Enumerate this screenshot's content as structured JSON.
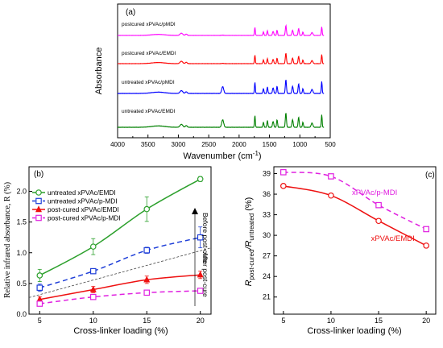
{
  "chart_data": [
    {
      "type": "line",
      "panel_label": "(a)",
      "xlabel": "Wavenumber (cm",
      "xlabel_sup": "-1",
      "xlabel_close": ")",
      "ylabel": "Absorbance",
      "xlim": [
        4000,
        500
      ],
      "xticks": [
        4000,
        3500,
        3000,
        2500,
        2000,
        1500,
        1000,
        500
      ],
      "series": [
        {
          "name": "postcured xPVAc/pMDI",
          "color": "#ff00ff",
          "offset": 3
        },
        {
          "name": "postcured xPVAc/EMDI",
          "color": "#ff0000",
          "offset": 2
        },
        {
          "name": "untreated xPVAc/pMDI",
          "color": "#0000ff",
          "offset": 1
        },
        {
          "name": "untreated xPVAc/EMDI",
          "color": "#008000",
          "offset": 0
        }
      ]
    },
    {
      "type": "line",
      "panel_label": "(b)",
      "xlabel": "Cross-linker loading (%)",
      "ylabel": "Relative infrared absorbance, R (%)",
      "xlim": [
        4,
        21
      ],
      "ylim": [
        0,
        2.4
      ],
      "xticks": [
        5,
        10,
        15,
        20
      ],
      "yticks": [
        0.0,
        0.5,
        1.0,
        1.5,
        2.0
      ],
      "ytick_labels": [
        "0.0",
        "0.5",
        "1.0",
        "1.5",
        "2.0"
      ],
      "x": [
        5,
        10,
        15,
        20
      ],
      "series": [
        {
          "name": "untreated xPVAc/EMDI",
          "values": [
            0.63,
            1.1,
            1.71,
            2.2
          ],
          "errors": [
            0.1,
            0.13,
            0.2,
            0.04
          ],
          "color": "#2ca02c",
          "dash": "solid",
          "marker": "circle"
        },
        {
          "name": "untreated xPVAc/p-MDI",
          "values": [
            0.43,
            0.7,
            1.04,
            1.25
          ],
          "errors": [
            0.06,
            0.04,
            0.05,
            0.17
          ],
          "color": "#1f3fd8",
          "dash": "dashed",
          "marker": "square"
        },
        {
          "name": "post-cured xPVAc/EMDI",
          "values": [
            0.24,
            0.4,
            0.56,
            0.64
          ],
          "errors": [
            0.04,
            0.05,
            0.06,
            0.06
          ],
          "color": "#ee1111",
          "dash": "solid",
          "marker": "triangle"
        },
        {
          "name": "post-cured xPVAc/p-MDI",
          "values": [
            0.17,
            0.28,
            0.35,
            0.38
          ],
          "errors": [
            0.02,
            0.02,
            0.03,
            0.03
          ],
          "color": "#e020e0",
          "dash": "dashed",
          "marker": "square"
        }
      ],
      "divider": {
        "x": [
          4,
          21
        ],
        "y": [
          0.27,
          1.08
        ]
      },
      "annotations": [
        "Before post-cure",
        "After post-cure"
      ]
    },
    {
      "type": "line",
      "panel_label": "(c)",
      "xlabel": "Cross-linker loading (%)",
      "ylabel_main": "R",
      "ylabel_sub1": "post-cured",
      "ylabel_mid": "/R",
      "ylabel_sub2": "untreated",
      "ylabel_unit": " (%)",
      "xlim": [
        4,
        21
      ],
      "ylim": [
        18.5,
        40
      ],
      "xticks": [
        5,
        10,
        15,
        20
      ],
      "yticks": [
        21,
        24,
        27,
        30,
        33,
        36,
        39
      ],
      "x": [
        5,
        10,
        15,
        20
      ],
      "series": [
        {
          "name": "xPVAc/EMDI",
          "values": [
            37.2,
            35.8,
            32.1,
            28.5
          ],
          "color": "#ee1111",
          "dash": "solid",
          "marker": "circle"
        },
        {
          "name": "xPVAc/p-MDI",
          "values": [
            39.2,
            38.6,
            34.4,
            30.9
          ],
          "color": "#e020e0",
          "dash": "dashed",
          "marker": "square"
        }
      ]
    }
  ]
}
